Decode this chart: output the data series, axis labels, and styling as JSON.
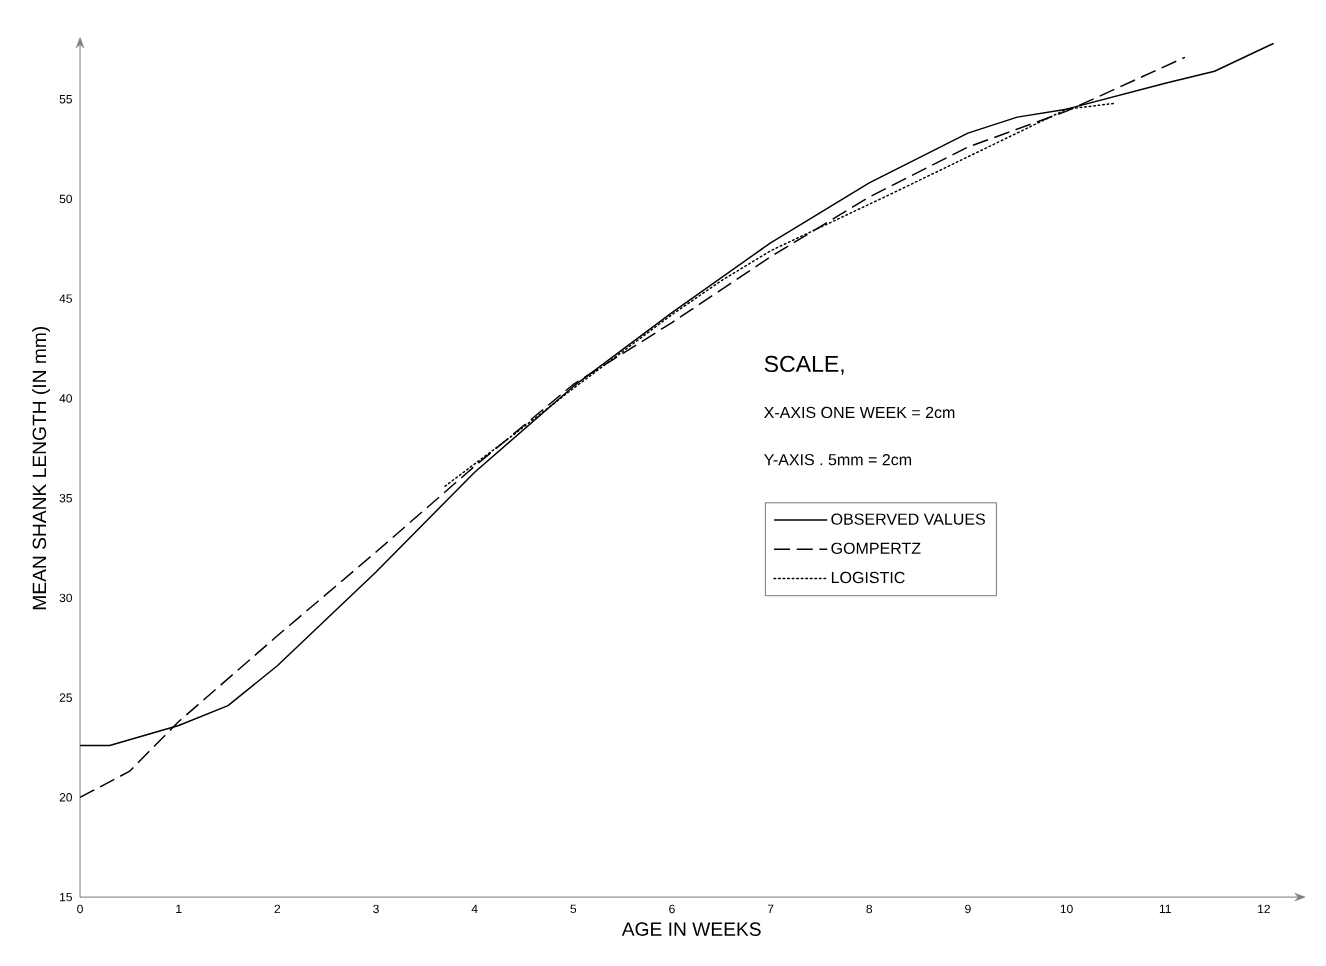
{
  "chart_data": {
    "type": "line",
    "xlabel": "AGE IN WEEKS",
    "ylabel": "MEAN SHANK LENGTH (IN mm)",
    "xlim": [
      0,
      12.4
    ],
    "ylim": [
      15,
      58
    ],
    "xticks": [
      0,
      1,
      2,
      3,
      4,
      5,
      6,
      7,
      8,
      9,
      10,
      11,
      12
    ],
    "yticks": [
      15,
      20,
      25,
      30,
      35,
      40,
      45,
      50,
      55
    ],
    "legend": "right",
    "grid": false,
    "marker": "none",
    "annotations": [
      "SCALE,",
      "X-AXIS  ONE WEEK = 2cm",
      "Y-AXIS . 5mm = 2cm"
    ],
    "series": [
      {
        "name": "OBSERVED VALUES",
        "color": "#000000",
        "line_style": "solid",
        "x": [
          0,
          0.3,
          1,
          1.5,
          2,
          3,
          4,
          5,
          6,
          7,
          8,
          9,
          9.5,
          10,
          11,
          11.5,
          12.1
        ],
        "values": [
          22.6,
          22.6,
          23.6,
          24.6,
          26.6,
          31.3,
          36.3,
          40.6,
          44.3,
          47.8,
          50.8,
          53.3,
          54.1,
          54.5,
          55.8,
          56.4,
          57.8
        ]
      },
      {
        "name": "GOMPERTZ",
        "color": "#000000",
        "line_style": "dashed",
        "x": [
          0,
          0.5,
          1,
          2,
          3,
          4,
          5,
          6,
          7,
          8,
          9,
          10,
          11.2
        ],
        "values": [
          20,
          21.3,
          23.8,
          28.1,
          32.3,
          36.6,
          40.7,
          43.8,
          47.1,
          50.1,
          52.6,
          54.4,
          57.1
        ]
      },
      {
        "name": "LOGISTIC",
        "color": "#000000",
        "line_style": "dotted",
        "x": [
          3.7,
          4.4,
          5,
          6,
          6.5,
          7,
          7.6,
          8.2,
          10,
          10.5
        ],
        "values": [
          35.6,
          38.2,
          40.5,
          44.2,
          45.9,
          47.4,
          48.8,
          50.2,
          54.5,
          54.8
        ]
      }
    ]
  }
}
